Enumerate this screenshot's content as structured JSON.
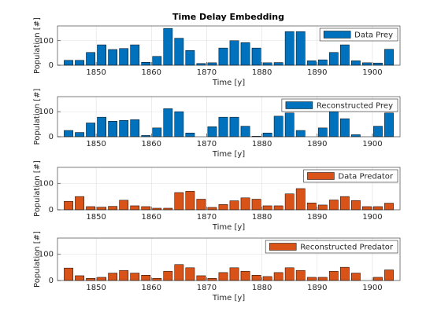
{
  "chart_data": [
    {
      "type": "bar",
      "title": "Time Delay Embedding",
      "xlabel": "Time [y]",
      "ylabel": "Population [#]",
      "x": [
        1845,
        1847,
        1849,
        1851,
        1853,
        1855,
        1857,
        1859,
        1861,
        1863,
        1865,
        1867,
        1869,
        1871,
        1873,
        1875,
        1877,
        1879,
        1881,
        1883,
        1885,
        1887,
        1889,
        1891,
        1893,
        1895,
        1897,
        1899,
        1901,
        1903
      ],
      "series": [
        {
          "name": "Data Prey",
          "color": "#0072bd",
          "values": [
            20,
            20,
            52,
            83,
            64,
            68,
            83,
            12,
            36,
            150,
            110,
            60,
            7,
            10,
            70,
            100,
            92,
            70,
            10,
            11,
            137,
            137,
            18,
            22,
            52,
            83,
            18,
            10,
            9,
            65
          ]
        }
      ],
      "xlim": [
        1843,
        1905
      ],
      "xticks": [
        1850,
        1860,
        1870,
        1880,
        1890,
        1900
      ],
      "ylim": [
        0,
        160
      ],
      "yticks": [
        0,
        100
      ],
      "grid": true,
      "legend": "upper right"
    },
    {
      "type": "bar",
      "xlabel": "Time [y]",
      "ylabel": "Population [#]",
      "x": [
        1845,
        1847,
        1849,
        1851,
        1853,
        1855,
        1857,
        1859,
        1861,
        1863,
        1865,
        1867,
        1869,
        1871,
        1873,
        1875,
        1877,
        1879,
        1881,
        1883,
        1885,
        1887,
        1889,
        1891,
        1893,
        1895,
        1897,
        1899,
        1901,
        1903
      ],
      "series": [
        {
          "name": "Reconstructed Prey",
          "color": "#0072bd",
          "values": [
            25,
            17,
            55,
            78,
            62,
            65,
            68,
            5,
            35,
            112,
            100,
            15,
            0,
            40,
            78,
            78,
            42,
            2,
            15,
            82,
            95,
            25,
            0,
            35,
            100,
            72,
            8,
            0,
            42,
            95
          ]
        }
      ],
      "xlim": [
        1843,
        1905
      ],
      "xticks": [
        1850,
        1860,
        1870,
        1880,
        1890,
        1900
      ],
      "ylim": [
        0,
        160
      ],
      "yticks": [
        0,
        100
      ],
      "grid": true,
      "legend": "upper right"
    },
    {
      "type": "bar",
      "xlabel": "Time [y]",
      "ylabel": "Population [#]",
      "x": [
        1845,
        1847,
        1849,
        1851,
        1853,
        1855,
        1857,
        1859,
        1861,
        1863,
        1865,
        1867,
        1869,
        1871,
        1873,
        1875,
        1877,
        1879,
        1881,
        1883,
        1885,
        1887,
        1889,
        1891,
        1893,
        1895,
        1897,
        1899,
        1901,
        1903
      ],
      "series": [
        {
          "name": "Data Predator",
          "color": "#d95319",
          "values": [
            32,
            50,
            12,
            10,
            13,
            36,
            15,
            12,
            6,
            6,
            65,
            70,
            40,
            9,
            20,
            34,
            45,
            40,
            15,
            15,
            60,
            80,
            26,
            18,
            37,
            50,
            35,
            12,
            12,
            25
          ]
        }
      ],
      "xlim": [
        1843,
        1905
      ],
      "xticks": [
        1850,
        1860,
        1870,
        1880,
        1890,
        1900
      ],
      "ylim": [
        0,
        160
      ],
      "yticks": [
        0,
        100
      ],
      "grid": true,
      "legend": "upper right"
    },
    {
      "type": "bar",
      "xlabel": "Time [y]",
      "ylabel": "Population [#]",
      "x": [
        1845,
        1847,
        1849,
        1851,
        1853,
        1855,
        1857,
        1859,
        1861,
        1863,
        1865,
        1867,
        1869,
        1871,
        1873,
        1875,
        1877,
        1879,
        1881,
        1883,
        1885,
        1887,
        1889,
        1891,
        1893,
        1895,
        1897,
        1899,
        1901,
        1903
      ],
      "series": [
        {
          "name": "Reconstructed Predator",
          "color": "#d95319",
          "values": [
            47,
            18,
            8,
            12,
            28,
            38,
            28,
            20,
            8,
            35,
            60,
            48,
            18,
            8,
            30,
            48,
            35,
            20,
            15,
            30,
            48,
            38,
            12,
            12,
            35,
            50,
            28,
            0,
            12,
            40
          ]
        }
      ],
      "xlim": [
        1843,
        1905
      ],
      "xticks": [
        1850,
        1860,
        1870,
        1880,
        1890,
        1900
      ],
      "ylim": [
        0,
        160
      ],
      "yticks": [
        0,
        100
      ],
      "grid": true,
      "legend": "upper right"
    }
  ]
}
